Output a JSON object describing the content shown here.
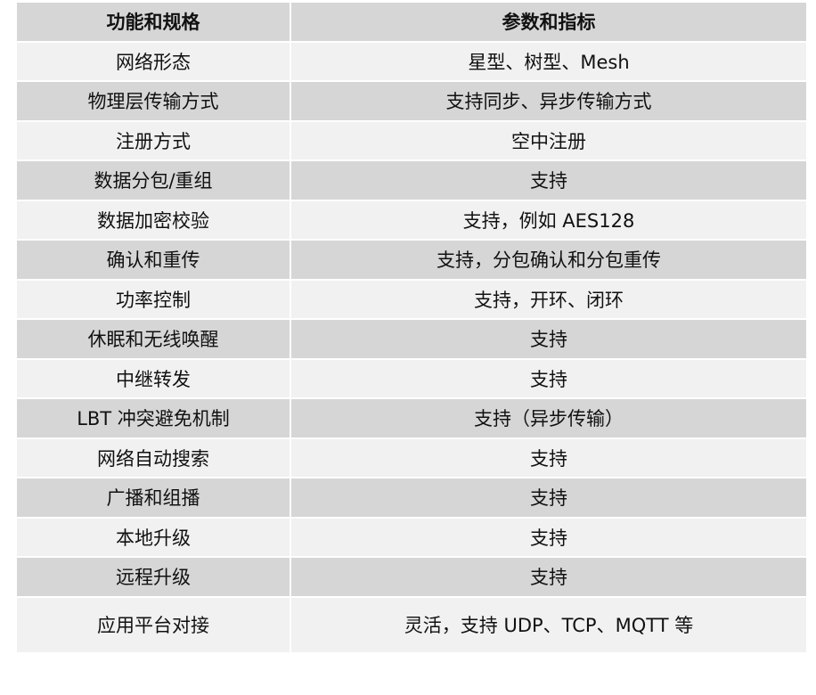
{
  "header": {
    "col1": "功能和规格",
    "col2": "参数和指标"
  },
  "rows": [
    {
      "feature": "网络形态",
      "value": "星型、树型、Mesh"
    },
    {
      "feature": "物理层传输方式",
      "value": "支持同步、异步传输方式"
    },
    {
      "feature": "注册方式",
      "value": "空中注册"
    },
    {
      "feature": "数据分包/重组",
      "value": "支持"
    },
    {
      "feature": "数据加密校验",
      "value": "支持，例如 AES128"
    },
    {
      "feature": "确认和重传",
      "value": "支持，分包确认和分包重传"
    },
    {
      "feature": "功率控制",
      "value": "支持，开环、闭环"
    },
    {
      "feature": "休眠和无线唤醒",
      "value": "支持"
    },
    {
      "feature": "中继转发",
      "value": "支持"
    },
    {
      "feature": "LBT 冲突避免机制",
      "value": "支持（异步传输）"
    },
    {
      "feature": "网络自动搜索",
      "value": "支持"
    },
    {
      "feature": "广播和组播",
      "value": "支持"
    },
    {
      "feature": "本地升级",
      "value": "支持"
    },
    {
      "feature": "远程升级",
      "value": "支持"
    },
    {
      "feature": "应用平台对接",
      "value": "灵活，支持 UDP、TCP、MQTT 等"
    }
  ],
  "colors": {
    "header_bg": "#d6d6d6",
    "row_light": "#f1f1f1",
    "row_dark": "#d6d6d6"
  }
}
